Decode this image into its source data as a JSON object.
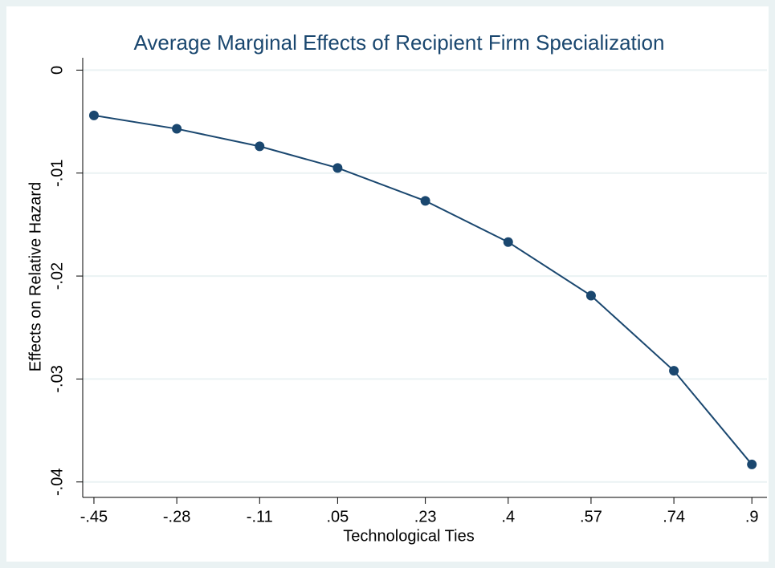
{
  "chart_data": {
    "type": "line",
    "title": "Average Marginal Effects of Recipient Firm Specialization",
    "x_label": "Technological Ties",
    "y_label": "Effects on Relative Hazard",
    "x": [
      -0.45,
      -0.28,
      -0.11,
      0.05,
      0.23,
      0.4,
      0.57,
      0.74,
      0.9
    ],
    "series": [
      {
        "name": "Effects on Relative Hazard",
        "color": "#1a476f",
        "values": [
          -0.0044,
          -0.0057,
          -0.0074,
          -0.0095,
          -0.0127,
          -0.0167,
          -0.0219,
          -0.0292,
          -0.0383
        ]
      }
    ],
    "xlim": [
      -0.473,
      0.931
    ],
    "xticks": [
      {
        "value": -0.45,
        "label": "-.45"
      },
      {
        "value": -0.28,
        "label": "-.28"
      },
      {
        "value": -0.11,
        "label": "-.11"
      },
      {
        "value": 0.05,
        "label": ".05"
      },
      {
        "value": 0.23,
        "label": ".23"
      },
      {
        "value": 0.4,
        "label": ".4"
      },
      {
        "value": 0.57,
        "label": ".57"
      },
      {
        "value": 0.74,
        "label": ".74"
      },
      {
        "value": 0.9,
        "label": ".9"
      }
    ],
    "ylim": [
      -0.0415,
      0.0012
    ],
    "yticks": [
      0,
      {
        "value": -0.01,
        "label": "-.01"
      },
      {
        "value": -0.02,
        "label": "-.02"
      },
      {
        "value": -0.03,
        "label": "-.03"
      },
      {
        "value": -0.04,
        "label": "-.04"
      }
    ],
    "grid": true
  }
}
